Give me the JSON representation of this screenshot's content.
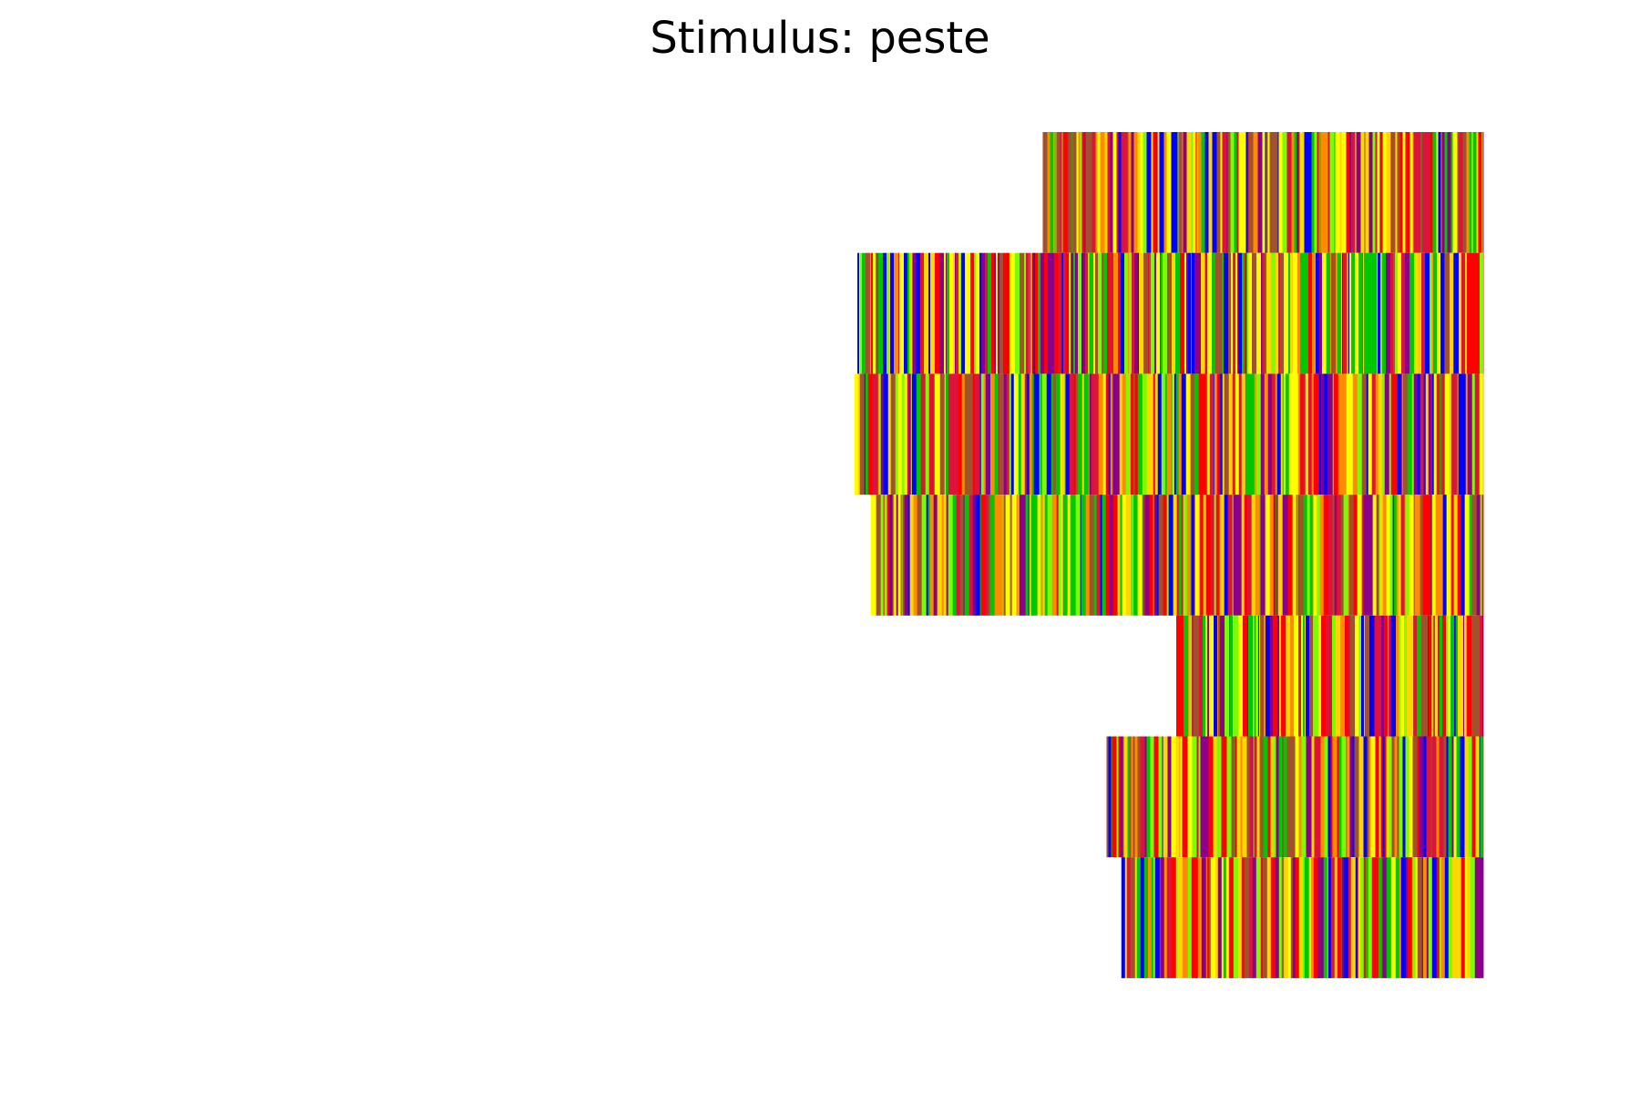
{
  "chart_data": {
    "type": "heatmap",
    "title": "Stimulus: peste",
    "xlabel": "",
    "ylabel": "",
    "grid": false,
    "axes_visible": false,
    "xlim": [
      0,
      100
    ],
    "row_count": 7,
    "palette": [
      "#ff0000",
      "#ff8c00",
      "#ffd700",
      "#ffff00",
      "#7cfc00",
      "#00c800",
      "#0000ff",
      "#8b008b",
      "#a0522d",
      "#dc143c"
    ],
    "rows": [
      {
        "row": 1,
        "x_start": 70.3,
        "x_end": 100,
        "seed": 11
      },
      {
        "row": 2,
        "x_start": 57.8,
        "x_end": 100,
        "seed": 23
      },
      {
        "row": 3,
        "x_start": 57.6,
        "x_end": 100,
        "seed": 37
      },
      {
        "row": 4,
        "x_start": 58.7,
        "x_end": 100,
        "seed": 41
      },
      {
        "row": 5,
        "x_start": 79.3,
        "x_end": 100,
        "seed": 53
      },
      {
        "row": 6,
        "x_start": 74.6,
        "x_end": 100,
        "seed": 67
      },
      {
        "row": 7,
        "x_start": 75.6,
        "x_end": 100,
        "seed": 79
      }
    ]
  }
}
